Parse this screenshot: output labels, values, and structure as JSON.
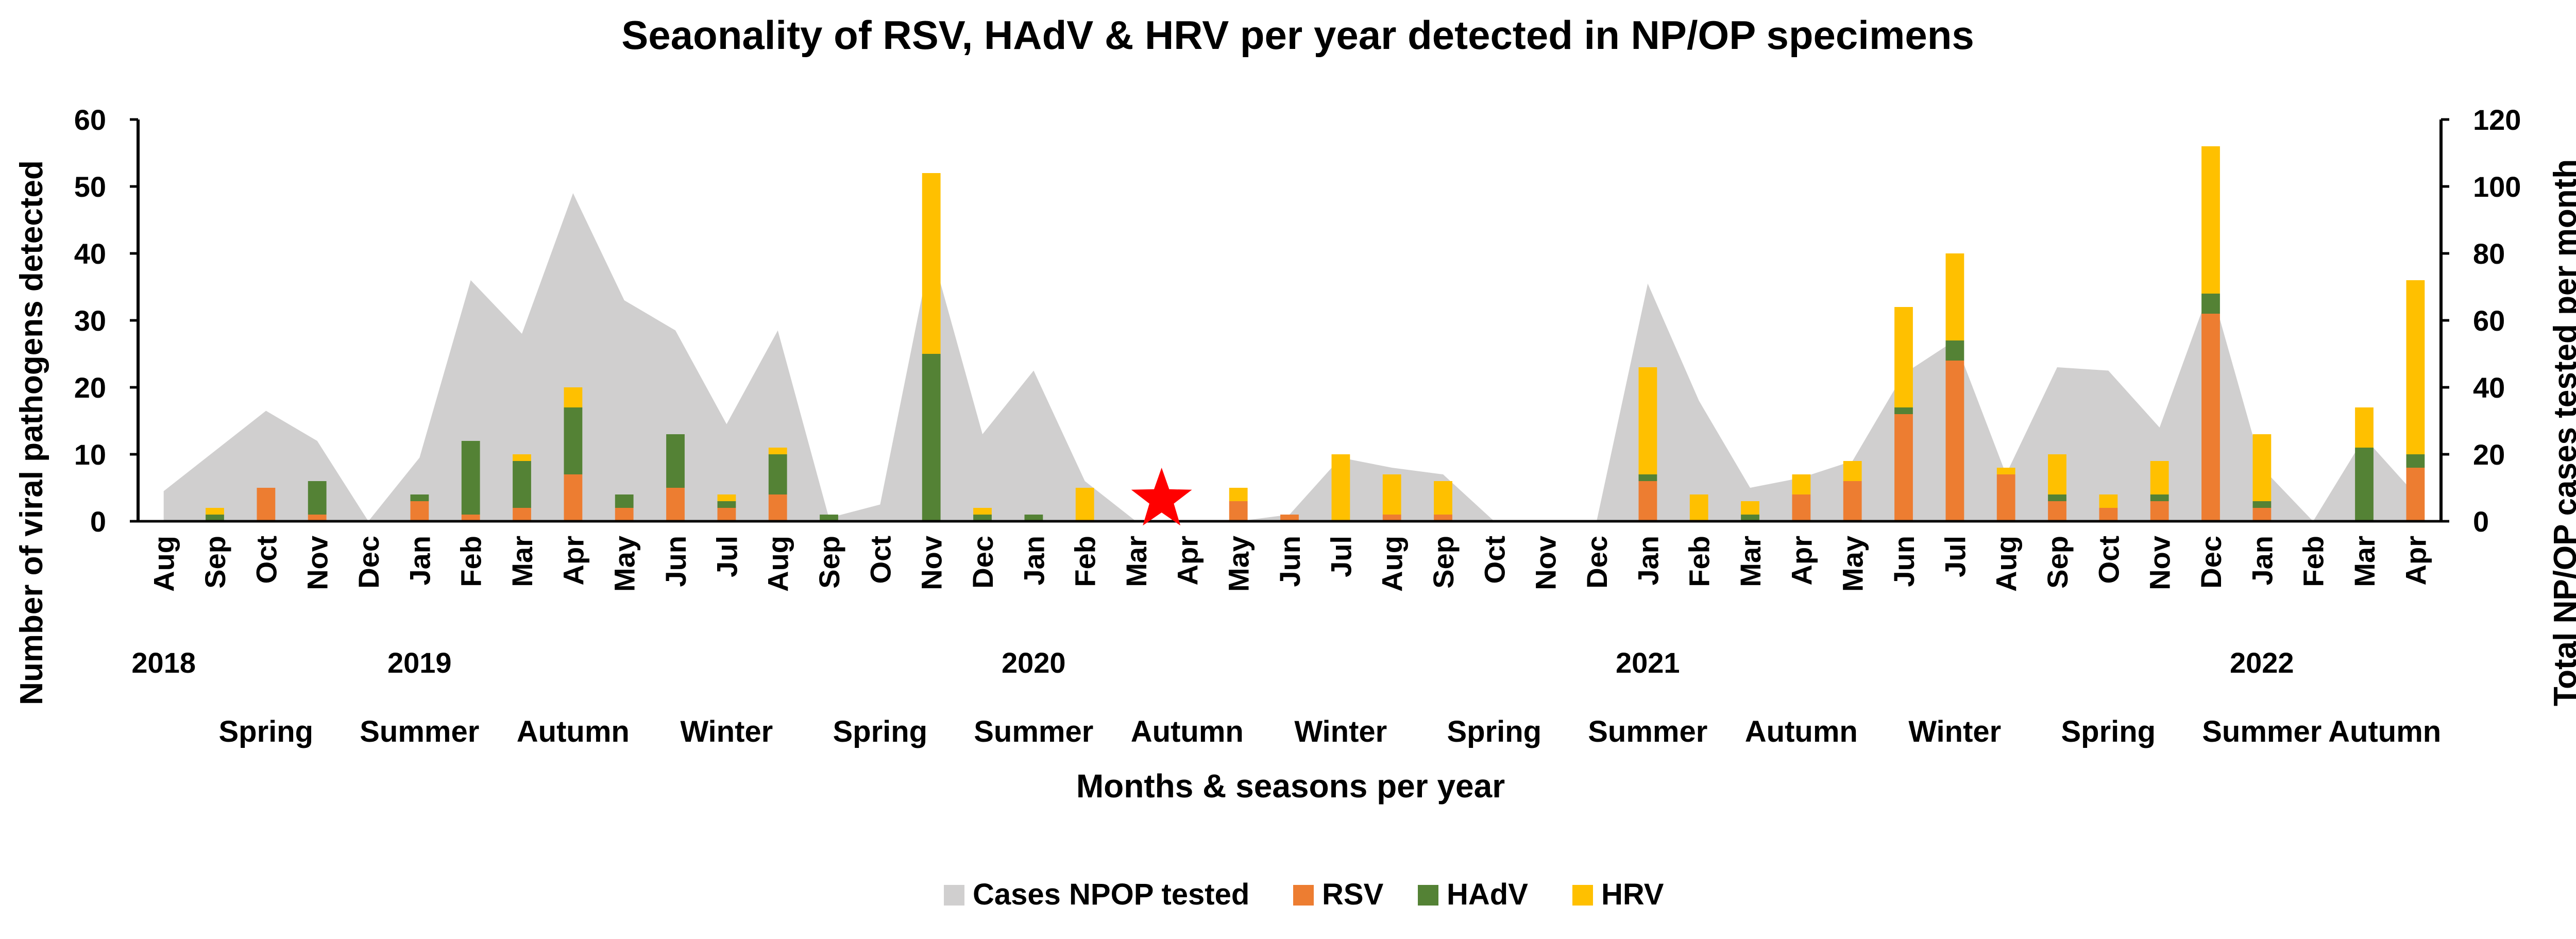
{
  "chart_data": {
    "type": "bar",
    "title": "Seaonality of RSV, HAdV & HRV per year detected in NP/OP specimens",
    "xlabel": "Months & seasons per year",
    "ylabel": "Number of viral pathogens detected",
    "y2label": "Total NP/OP cases tested per month",
    "ylim": [
      0,
      60
    ],
    "y2lim": [
      0,
      120
    ],
    "yticks": [
      "0",
      "10",
      "20",
      "30",
      "40",
      "50",
      "60"
    ],
    "y2ticks": [
      "0",
      "20",
      "40",
      "60",
      "80",
      "100",
      "120"
    ],
    "stacked": true,
    "grid": false,
    "legend_position": "bottom",
    "categories": [
      "Aug",
      "Sep",
      "Oct",
      "Nov",
      "Dec",
      "Jan",
      "Feb",
      "Mar",
      "Apr",
      "May",
      "Jun",
      "Jul",
      "Aug",
      "Sep",
      "Oct",
      "Nov",
      "Dec",
      "Jan",
      "Feb",
      "Mar",
      "Apr",
      "May",
      "Jun",
      "Jul",
      "Aug",
      "Sep",
      "Oct",
      "Nov",
      "Dec",
      "Jan",
      "Feb",
      "Mar",
      "Apr",
      "May",
      "Jun",
      "Jul",
      "Aug",
      "Sep",
      "Oct",
      "Nov",
      "Dec",
      "Jan",
      "Feb",
      "Mar",
      "Apr"
    ],
    "years": [
      {
        "label": "2018",
        "index": 0
      },
      {
        "label": "2019",
        "index": 5
      },
      {
        "label": "2020",
        "index": 17
      },
      {
        "label": "2021",
        "index": 29
      },
      {
        "label": "2022",
        "index": 41
      }
    ],
    "seasons": [
      {
        "label": "Spring",
        "index": 2
      },
      {
        "label": "Summer",
        "index": 5
      },
      {
        "label": "Autumn",
        "index": 8
      },
      {
        "label": "Winter",
        "index": 11
      },
      {
        "label": "Spring",
        "index": 14
      },
      {
        "label": "Summer",
        "index": 17
      },
      {
        "label": "Autumn",
        "index": 20
      },
      {
        "label": "Winter",
        "index": 23
      },
      {
        "label": "Spring",
        "index": 26
      },
      {
        "label": "Summer",
        "index": 29
      },
      {
        "label": "Autumn",
        "index": 32
      },
      {
        "label": "Winter",
        "index": 35
      },
      {
        "label": "Spring",
        "index": 38
      },
      {
        "label": "Summer",
        "index": 41
      },
      {
        "label": "Autumn",
        "index": 43.4
      }
    ],
    "area_series": {
      "name": "Cases NPOP tested",
      "axis": "secondary",
      "color": "#d0cfcf",
      "values": [
        9,
        21,
        33,
        24,
        0,
        19,
        72,
        56,
        98,
        66,
        57,
        29,
        57,
        1,
        5,
        81,
        26,
        45,
        12,
        0,
        0,
        0,
        2,
        19,
        16,
        14,
        0,
        0,
        0,
        71,
        36,
        10,
        13,
        18,
        44,
        54,
        14,
        46,
        45,
        28,
        70,
        16,
        0,
        25,
        8
      ]
    },
    "series": [
      {
        "name": "RSV",
        "color": "#ed7d31",
        "values": [
          0,
          0,
          5,
          1,
          0,
          3,
          1,
          2,
          7,
          2,
          5,
          2,
          4,
          0,
          0,
          0,
          0,
          0,
          0,
          0,
          0,
          3,
          1,
          0,
          1,
          1,
          0,
          0,
          0,
          6,
          0,
          0,
          4,
          6,
          16,
          24,
          7,
          3,
          2,
          3,
          31,
          2,
          0,
          0,
          8
        ]
      },
      {
        "name": "HAdV",
        "color": "#548235",
        "values": [
          0,
          1,
          0,
          5,
          0,
          1,
          11,
          7,
          10,
          2,
          8,
          1,
          6,
          1,
          0,
          25,
          1,
          1,
          0,
          0,
          0,
          0,
          0,
          0,
          0,
          0,
          0,
          0,
          0,
          1,
          0,
          1,
          0,
          0,
          1,
          3,
          0,
          1,
          0,
          1,
          3,
          1,
          0,
          11,
          2
        ]
      },
      {
        "name": "HRV",
        "color": "#ffc000",
        "values": [
          0,
          1,
          0,
          0,
          0,
          0,
          0,
          1,
          3,
          0,
          0,
          1,
          1,
          0,
          0,
          27,
          1,
          0,
          5,
          0,
          0,
          2,
          0,
          10,
          6,
          5,
          0,
          0,
          0,
          16,
          4,
          2,
          3,
          3,
          15,
          13,
          1,
          6,
          2,
          5,
          22,
          10,
          0,
          6,
          26
        ]
      }
    ],
    "annotation": {
      "type": "red-star",
      "color": "#ff0000",
      "between": [
        "Mar",
        "Apr"
      ],
      "category_index": 19.5
    }
  }
}
